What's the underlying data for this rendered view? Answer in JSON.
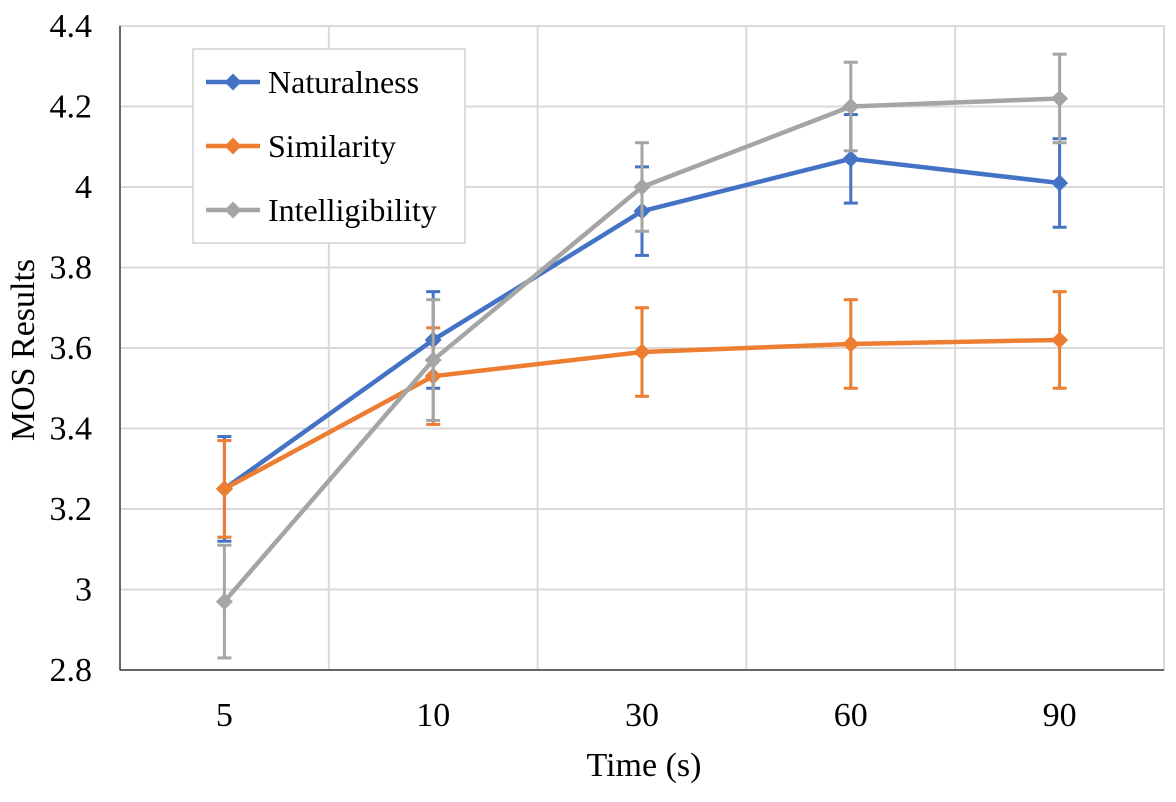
{
  "chart_data": {
    "type": "line",
    "title": "",
    "xlabel": "Time (s)",
    "ylabel": "MOS Results",
    "categories": [
      "5",
      "10",
      "30",
      "60",
      "90"
    ],
    "ylim": [
      2.8,
      4.4
    ],
    "yticks": [
      2.8,
      3,
      3.2,
      3.4,
      3.6,
      3.8,
      4,
      4.2,
      4.4
    ],
    "ytick_labels": [
      "2.8",
      "3",
      "3.2",
      "3.4",
      "3.6",
      "3.8",
      "4",
      "4.2",
      "4.4"
    ],
    "grid": true,
    "legend_position": "top-left",
    "series": [
      {
        "name": "Naturalness",
        "color": "#4472C4",
        "values": [
          3.25,
          3.62,
          3.94,
          4.07,
          4.01
        ],
        "error": [
          0.13,
          0.12,
          0.11,
          0.11,
          0.11
        ]
      },
      {
        "name": "Similarity",
        "color": "#ED7D31",
        "values": [
          3.25,
          3.53,
          3.59,
          3.61,
          3.62
        ],
        "error": [
          0.12,
          0.12,
          0.11,
          0.11,
          0.12
        ]
      },
      {
        "name": "Intelligibility",
        "color": "#A5A5A5",
        "values": [
          2.97,
          3.57,
          4.0,
          4.2,
          4.22
        ],
        "error": [
          0.14,
          0.15,
          0.11,
          0.11,
          0.11
        ]
      }
    ]
  }
}
